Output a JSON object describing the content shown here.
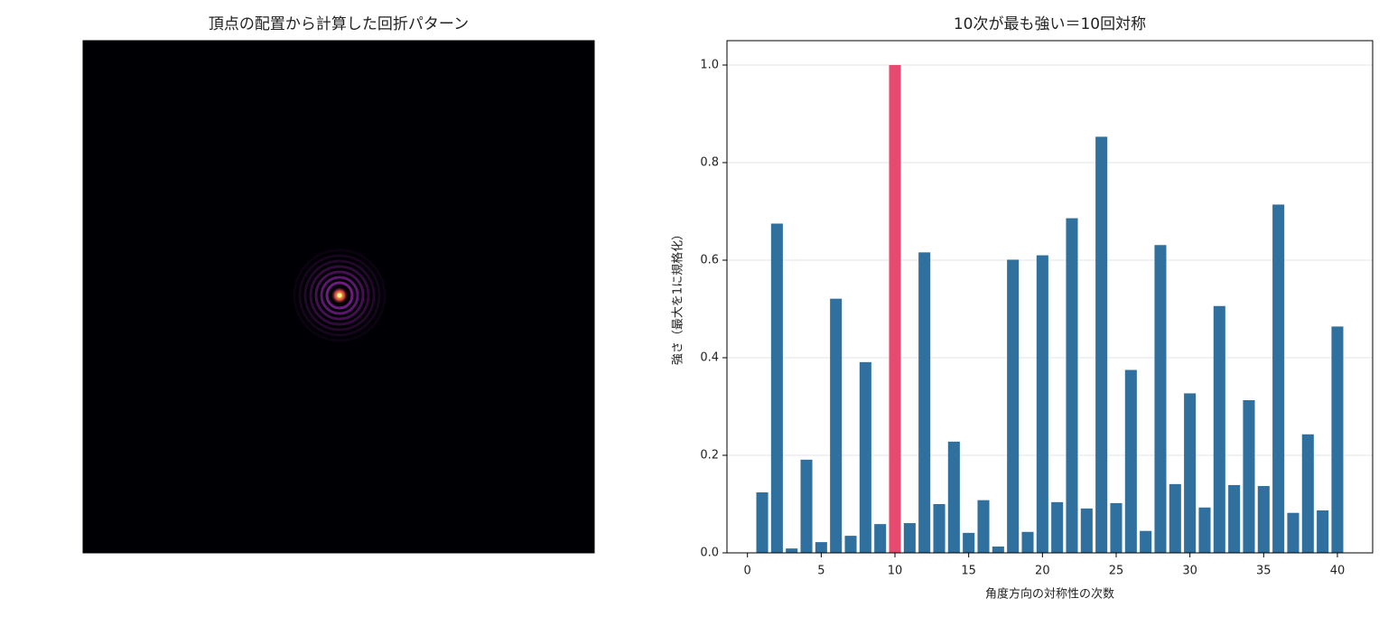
{
  "chart_data": [
    {
      "type": "image",
      "title": "頂点の配置から計算した回折パターン"
    },
    {
      "type": "bar",
      "title": "10次が最も強い＝10回対称",
      "x_label": "角度方向の対称性の次数",
      "y_label": "強さ（最大を1に規格化）",
      "x": [
        1,
        2,
        3,
        4,
        5,
        6,
        7,
        8,
        9,
        10,
        11,
        12,
        13,
        14,
        15,
        16,
        17,
        18,
        19,
        20,
        21,
        22,
        23,
        24,
        25,
        26,
        27,
        28,
        29,
        30,
        31,
        32,
        33,
        34,
        35,
        36,
        37,
        38,
        39,
        40
      ],
      "values": [
        0.124,
        0.675,
        0.009,
        0.191,
        0.022,
        0.521,
        0.035,
        0.391,
        0.059,
        1.0,
        0.061,
        0.616,
        0.1,
        0.228,
        0.041,
        0.108,
        0.013,
        0.601,
        0.043,
        0.61,
        0.104,
        0.686,
        0.091,
        0.853,
        0.102,
        0.375,
        0.045,
        0.631,
        0.141,
        0.327,
        0.093,
        0.506,
        0.139,
        0.313,
        0.137,
        0.714,
        0.082,
        0.243,
        0.087,
        0.464
      ],
      "colors": [
        "#30709e",
        "#30709e",
        "#30709e",
        "#30709e",
        "#30709e",
        "#30709e",
        "#30709e",
        "#30709e",
        "#30709e",
        "#e84a6f",
        "#30709e",
        "#30709e",
        "#30709e",
        "#30709e",
        "#30709e",
        "#30709e",
        "#30709e",
        "#30709e",
        "#30709e",
        "#30709e",
        "#30709e",
        "#30709e",
        "#30709e",
        "#30709e",
        "#30709e",
        "#30709e",
        "#30709e",
        "#30709e",
        "#30709e",
        "#30709e",
        "#30709e",
        "#30709e",
        "#30709e",
        "#30709e",
        "#30709e",
        "#30709e",
        "#30709e",
        "#30709e",
        "#30709e",
        "#30709e"
      ],
      "xlim": [
        -1.39,
        42.39
      ],
      "ylim": [
        0,
        1.05
      ],
      "xticks": [
        0,
        5,
        10,
        15,
        20,
        25,
        30,
        35,
        40
      ],
      "yticks": [
        {
          "value": 0,
          "label": "0.0"
        },
        0.2,
        0.4,
        0.6,
        0.8,
        {
          "value": 1,
          "label": "1.0"
        }
      ],
      "grid": true
    }
  ]
}
